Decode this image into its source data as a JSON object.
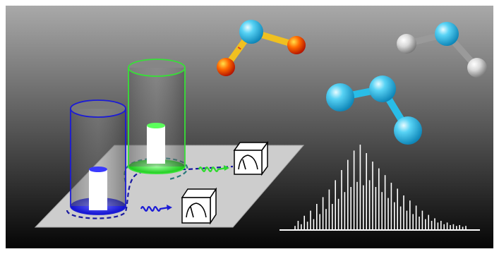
{
  "colors": {
    "bg_top": "#a9a9a9",
    "bg_bottom": "#050505",
    "border": "#ffffff",
    "platform": "#c9c9c9",
    "blue": "#1b1bd6",
    "green": "#2edb2e",
    "cyan_atom": "#29bde8",
    "red_atom": "#e03a00",
    "grey_atom": "#cfcfcf",
    "spectrum": "#ffffff"
  },
  "icons": {
    "detector": "analog-meter-cube-icon",
    "wave": "wave-signal-icon"
  },
  "spectrum": {
    "type": "stick-spectrum",
    "peaks": [
      0.04,
      0.1,
      0.06,
      0.16,
      0.09,
      0.22,
      0.12,
      0.3,
      0.18,
      0.38,
      0.24,
      0.47,
      0.3,
      0.58,
      0.36,
      0.7,
      0.44,
      0.82,
      0.5,
      0.93,
      0.56,
      1.0,
      0.52,
      0.9,
      0.58,
      0.8,
      0.5,
      0.72,
      0.44,
      0.64,
      0.37,
      0.55,
      0.32,
      0.48,
      0.27,
      0.4,
      0.22,
      0.34,
      0.18,
      0.28,
      0.15,
      0.22,
      0.12,
      0.17,
      0.1,
      0.13,
      0.08,
      0.1,
      0.06,
      0.08,
      0.05,
      0.06,
      0.04,
      0.05,
      0.03,
      0.04
    ]
  }
}
